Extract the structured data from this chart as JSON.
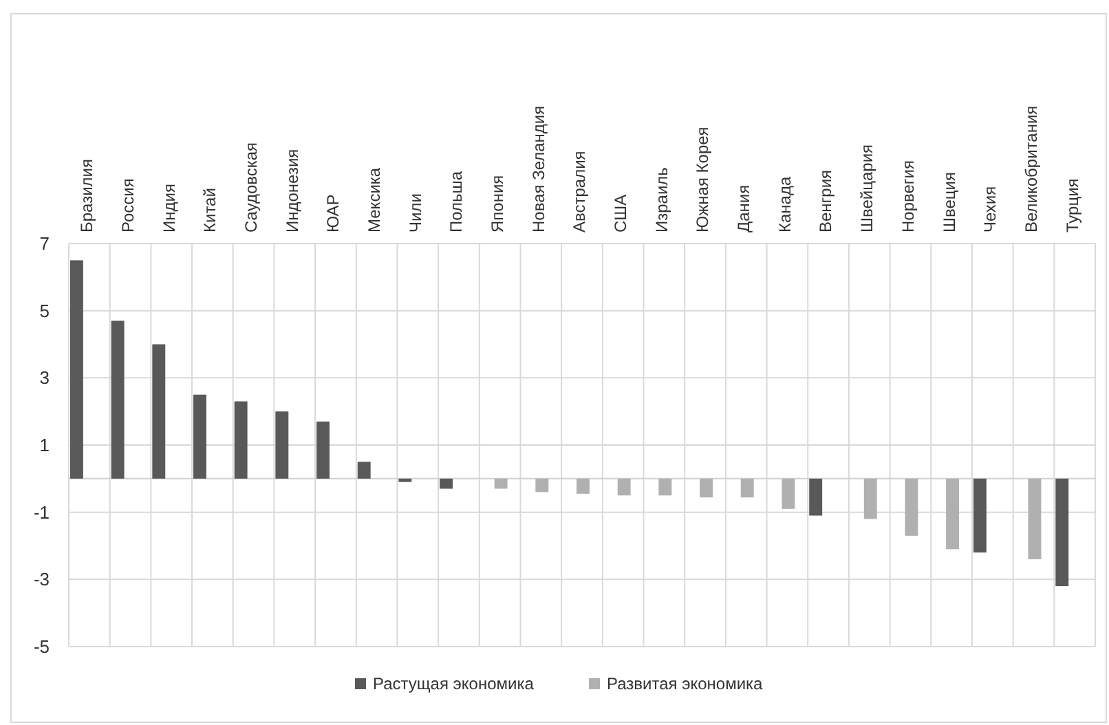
{
  "chart_data": {
    "type": "bar",
    "categories": [
      "Бразилия",
      "Россия",
      "Индия",
      "Китай",
      "Саудовская",
      "Индонезия",
      "ЮАР",
      "Мексика",
      "Чили",
      "Польша",
      "Япония",
      "Новая Зеландия",
      "Австралия",
      "США",
      "Израиль",
      "Южная Корея",
      "Дания",
      "Канада",
      "Венгрия",
      "Швейцария",
      "Норвегия",
      "Швеция",
      "Чехия",
      "Великобритания",
      "Турция"
    ],
    "series": [
      {
        "name": "Растущая экономика",
        "color": "#595959",
        "values": [
          6.5,
          4.7,
          4.0,
          2.5,
          2.3,
          2.0,
          1.7,
          0.5,
          -0.1,
          -0.3,
          null,
          null,
          null,
          null,
          null,
          null,
          null,
          null,
          -1.1,
          null,
          null,
          null,
          -2.2,
          null,
          -3.2
        ]
      },
      {
        "name": "Развитая экономика",
        "color": "#b0b0b0",
        "values": [
          null,
          null,
          null,
          null,
          null,
          null,
          null,
          null,
          null,
          null,
          -0.3,
          -0.4,
          -0.45,
          -0.5,
          -0.5,
          -0.56,
          -0.56,
          -0.9,
          null,
          -1.2,
          -1.7,
          -2.1,
          null,
          -2.4,
          null
        ]
      }
    ],
    "ylim": [
      -5,
      7
    ],
    "yticks": [
      7,
      5,
      3,
      1,
      -1,
      -3,
      -5
    ],
    "grid": true,
    "legend": "bottom"
  }
}
